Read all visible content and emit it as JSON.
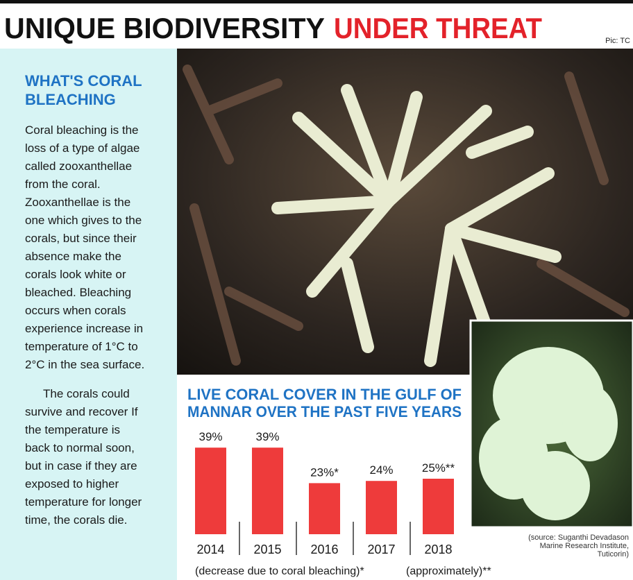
{
  "header": {
    "title_black": "UNIQUE BIODIVERSITY",
    "title_red": "UNDER THREAT",
    "credit": "Pic: TC"
  },
  "sidebar": {
    "heading": [
      "WHAT'S CORAL",
      "BLEACHING"
    ],
    "paragraphs": [
      [
        "Coral bleaching is the",
        "loss of a type of algae",
        "called zooxanthellae",
        "from the coral.",
        "Zooxanthellae is the",
        "one which gives to the",
        "corals, but since their",
        "absence make the",
        "corals look white or",
        "bleached. Bleaching",
        "occurs when corals",
        "experience increase in",
        "temperature of 1°C to",
        "2°C in the sea surface."
      ],
      [
        "The corals could",
        "survive and recover If",
        "the temperature is",
        "back to normal soon,",
        "but in case if they are",
        "exposed to higher",
        "temperature for longer",
        "time, the corals die."
      ]
    ]
  },
  "chart_data": {
    "type": "bar",
    "title": [
      "LIVE CORAL COVER IN THE GULF OF",
      "MANNAR OVER THE PAST FIVE YEARS"
    ],
    "categories": [
      "2014",
      "2015",
      "2016",
      "2017",
      "2018"
    ],
    "values": [
      39,
      39,
      23,
      24,
      25
    ],
    "value_labels": [
      "39%",
      "39%",
      "23%*",
      "24%",
      "25%**"
    ],
    "color": "#ee3b3b",
    "notes": [
      "(decrease due to coral bleaching)*",
      "(approximately)**"
    ]
  },
  "source": [
    "(source: Suganthi Devadason",
    "Marine Research Institute,",
    "Tuticorin)"
  ]
}
